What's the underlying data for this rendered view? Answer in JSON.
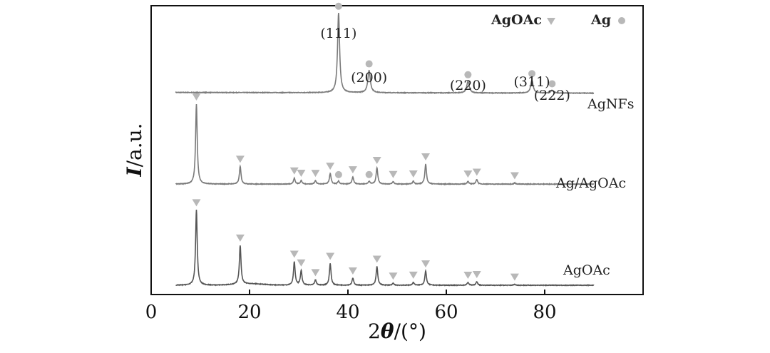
{
  "chart_data": {
    "type": "line",
    "xlabel_prefix": "2",
    "xlabel_symbol": "θ",
    "xlabel_suffix": "/(°)",
    "ylabel_symbol": "I",
    "ylabel_suffix": "/a.u.",
    "xlim": [
      0,
      100
    ],
    "xticks": [
      0,
      20,
      40,
      60,
      80
    ],
    "grid": false,
    "legend_position": "top-right",
    "legend": [
      {
        "name": "AgOAc",
        "marker": "triangle"
      },
      {
        "name": "Ag",
        "marker": "circle"
      }
    ],
    "colors": {
      "axis": "#111111",
      "AgNFs": "#7a7a7a",
      "Ag/AgOAc": "#7a7a7a",
      "AgOAc": "#555555",
      "marker": "#b8b8b8"
    },
    "series": [
      {
        "name": "AgNFs",
        "x_range": [
          5,
          90
        ],
        "baseline": 0.92,
        "slope": -0.03,
        "noise": 0.012,
        "hump": null,
        "peaks": [
          {
            "x": 38.1,
            "h": 3.4,
            "w": 0.25
          },
          {
            "x": 44.3,
            "h": 0.95,
            "w": 0.3
          },
          {
            "x": 64.4,
            "h": 0.5,
            "w": 0.3
          },
          {
            "x": 77.4,
            "h": 0.55,
            "w": 0.3
          },
          {
            "x": 81.5,
            "h": 0.12,
            "w": 0.3
          }
        ],
        "markers": [
          {
            "x": 38.1,
            "type": "circle"
          },
          {
            "x": 44.3,
            "type": "circle"
          },
          {
            "x": 64.4,
            "type": "circle"
          },
          {
            "x": 77.4,
            "type": "circle"
          },
          {
            "x": 81.5,
            "type": "circle"
          }
        ],
        "peak_labels": [
          {
            "x": 38.1,
            "text": "(111)"
          },
          {
            "x": 44.3,
            "text": "(200)"
          },
          {
            "x": 64.4,
            "text": "(220)"
          },
          {
            "x": 77.4,
            "text": "(311)"
          },
          {
            "x": 81.5,
            "text": "(222)"
          }
        ]
      },
      {
        "name": "Ag/AgOAc",
        "x_range": [
          5,
          90
        ],
        "baseline": 0.48,
        "slope": 0.0,
        "noise": 0.012,
        "hump": null,
        "peaks": [
          {
            "x": 9.2,
            "h": 3.4,
            "w": 0.2
          },
          {
            "x": 18.1,
            "h": 0.75,
            "w": 0.2
          },
          {
            "x": 29.1,
            "h": 0.25,
            "w": 0.2
          },
          {
            "x": 30.5,
            "h": 0.15,
            "w": 0.2
          },
          {
            "x": 33.4,
            "h": 0.15,
            "w": 0.2
          },
          {
            "x": 36.4,
            "h": 0.45,
            "w": 0.2
          },
          {
            "x": 38.1,
            "h": 0.12,
            "w": 0.2
          },
          {
            "x": 41.0,
            "h": 0.3,
            "w": 0.2
          },
          {
            "x": 44.3,
            "h": 0.12,
            "w": 0.2
          },
          {
            "x": 45.9,
            "h": 0.7,
            "w": 0.2
          },
          {
            "x": 49.2,
            "h": 0.1,
            "w": 0.2
          },
          {
            "x": 53.3,
            "h": 0.12,
            "w": 0.2
          },
          {
            "x": 55.8,
            "h": 0.85,
            "w": 0.2
          },
          {
            "x": 64.4,
            "h": 0.12,
            "w": 0.2
          },
          {
            "x": 66.2,
            "h": 0.2,
            "w": 0.2
          },
          {
            "x": 73.9,
            "h": 0.05,
            "w": 0.2
          }
        ],
        "markers": [
          {
            "x": 9.2,
            "type": "triangle"
          },
          {
            "x": 18.1,
            "type": "triangle"
          },
          {
            "x": 29.1,
            "type": "triangle"
          },
          {
            "x": 30.5,
            "type": "triangle"
          },
          {
            "x": 33.4,
            "type": "triangle"
          },
          {
            "x": 36.4,
            "type": "triangle"
          },
          {
            "x": 38.1,
            "type": "circle"
          },
          {
            "x": 41.0,
            "type": "triangle"
          },
          {
            "x": 44.3,
            "type": "circle"
          },
          {
            "x": 45.9,
            "type": "triangle"
          },
          {
            "x": 49.2,
            "type": "triangle"
          },
          {
            "x": 53.3,
            "type": "triangle"
          },
          {
            "x": 55.8,
            "type": "triangle"
          },
          {
            "x": 64.4,
            "type": "triangle"
          },
          {
            "x": 66.2,
            "type": "triangle"
          },
          {
            "x": 73.9,
            "type": "triangle"
          }
        ],
        "peak_labels": []
      },
      {
        "name": "AgOAc",
        "x_range": [
          5,
          90
        ],
        "baseline": 0.0,
        "slope": 0.0,
        "noise": 0.012,
        "hump": {
          "x": 20,
          "h": 0.06,
          "w": 4
        },
        "peaks": [
          {
            "x": 9.2,
            "h": 3.2,
            "w": 0.2
          },
          {
            "x": 18.1,
            "h": 1.65,
            "w": 0.2
          },
          {
            "x": 29.1,
            "h": 1.0,
            "w": 0.2
          },
          {
            "x": 30.5,
            "h": 0.62,
            "w": 0.2
          },
          {
            "x": 33.4,
            "h": 0.22,
            "w": 0.2
          },
          {
            "x": 36.4,
            "h": 0.92,
            "w": 0.2
          },
          {
            "x": 41.0,
            "h": 0.3,
            "w": 0.2
          },
          {
            "x": 45.9,
            "h": 0.8,
            "w": 0.2
          },
          {
            "x": 49.2,
            "h": 0.08,
            "w": 0.2
          },
          {
            "x": 53.3,
            "h": 0.12,
            "w": 0.2
          },
          {
            "x": 55.8,
            "h": 0.6,
            "w": 0.2
          },
          {
            "x": 64.4,
            "h": 0.12,
            "w": 0.2
          },
          {
            "x": 66.2,
            "h": 0.15,
            "w": 0.2
          },
          {
            "x": 73.9,
            "h": 0.04,
            "w": 0.2
          }
        ],
        "markers": [
          {
            "x": 9.2,
            "type": "triangle"
          },
          {
            "x": 18.1,
            "type": "triangle"
          },
          {
            "x": 29.1,
            "type": "triangle"
          },
          {
            "x": 30.5,
            "type": "triangle"
          },
          {
            "x": 33.4,
            "type": "triangle"
          },
          {
            "x": 36.4,
            "type": "triangle"
          },
          {
            "x": 41.0,
            "type": "triangle"
          },
          {
            "x": 45.9,
            "type": "triangle"
          },
          {
            "x": 49.2,
            "type": "triangle"
          },
          {
            "x": 53.3,
            "type": "triangle"
          },
          {
            "x": 55.8,
            "type": "triangle"
          },
          {
            "x": 64.4,
            "type": "triangle"
          },
          {
            "x": 66.2,
            "type": "triangle"
          },
          {
            "x": 73.9,
            "type": "triangle"
          }
        ],
        "peak_labels": []
      }
    ]
  }
}
